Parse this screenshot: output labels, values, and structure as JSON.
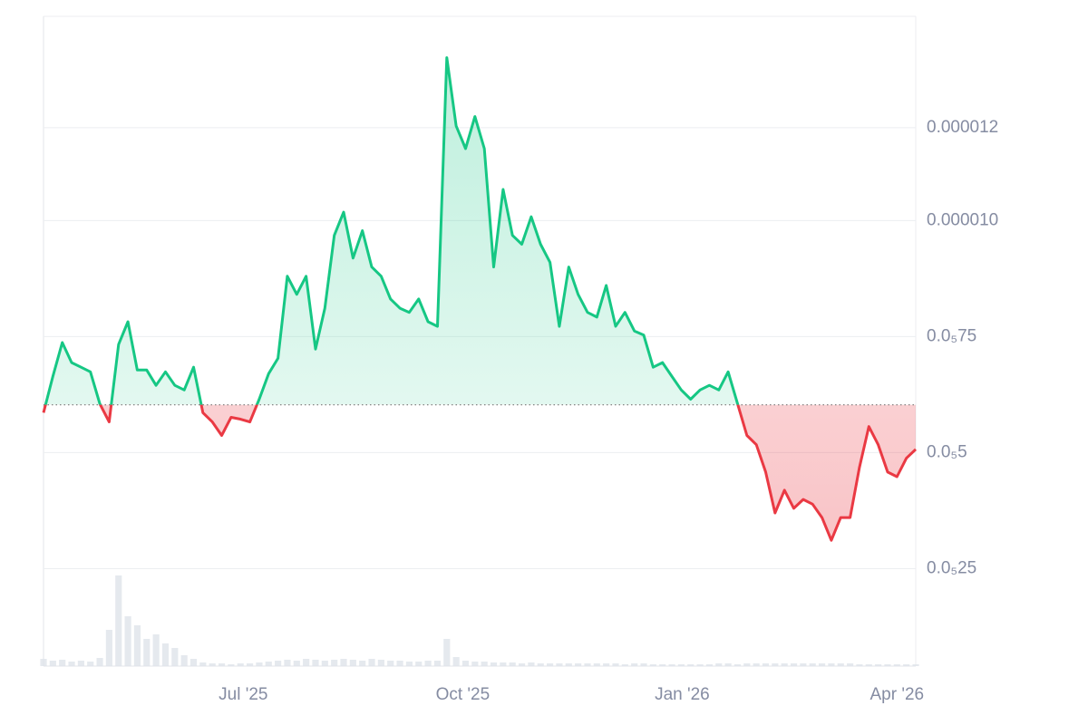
{
  "chart_data": {
    "type": "line",
    "values": [
      5.86e-06,
      6.64e-06,
      7.37e-06,
      6.94e-06,
      6.84e-06,
      6.74e-06,
      6.05e-06,
      5.66e-06,
      7.33e-06,
      7.82e-06,
      6.78e-06,
      6.78e-06,
      6.45e-06,
      6.74e-06,
      6.45e-06,
      6.35e-06,
      6.84e-06,
      5.86e-06,
      5.66e-06,
      5.37e-06,
      5.76e-06,
      5.72e-06,
      5.66e-06,
      6.15e-06,
      6.7e-06,
      7.03e-06,
      8.8e-06,
      8.41e-06,
      8.8e-06,
      7.23e-06,
      8.11e-06,
      9.68e-06,
      1.018e-05,
      9.19e-06,
      9.78e-06,
      9e-06,
      8.8e-06,
      8.31e-06,
      8.11e-06,
      8.02e-06,
      8.31e-06,
      7.82e-06,
      7.72e-06,
      1.351e-05,
      1.204e-05,
      1.155e-05,
      1.224e-05,
      1.155e-05,
      9e-06,
      1.067e-05,
      9.68e-06,
      9.49e-06,
      1.008e-05,
      9.49e-06,
      9.1e-06,
      7.72e-06,
      9e-06,
      8.41e-06,
      8.02e-06,
      7.92e-06,
      8.6e-06,
      7.72e-06,
      8.02e-06,
      7.62e-06,
      7.53e-06,
      6.84e-06,
      6.94e-06,
      6.64e-06,
      6.35e-06,
      6.15e-06,
      6.35e-06,
      6.45e-06,
      6.35e-06,
      6.74e-06,
      6.05e-06,
      5.37e-06,
      5.17e-06,
      4.58e-06,
      3.7e-06,
      4.19e-06,
      3.8e-06,
      3.99e-06,
      3.89e-06,
      3.6e-06,
      3.11e-06,
      3.6e-06,
      3.6e-06,
      4.68e-06,
      5.56e-06,
      5.17e-06,
      4.58e-06,
      4.48e-06,
      4.88e-06,
      5.07e-06
    ],
    "volume": [
      8,
      6,
      7,
      5,
      6,
      5,
      9,
      40,
      100,
      55,
      45,
      30,
      35,
      25,
      20,
      12,
      8,
      4,
      3,
      3,
      2,
      3,
      3,
      4,
      5,
      6,
      7,
      6,
      8,
      7,
      6,
      7,
      8,
      7,
      6,
      8,
      7,
      6,
      6,
      5,
      5,
      6,
      6,
      30,
      10,
      6,
      5,
      5,
      4,
      4,
      4,
      3,
      4,
      3,
      3,
      3,
      3,
      3,
      3,
      3,
      3,
      3,
      2,
      3,
      3,
      2,
      2,
      2,
      2,
      2,
      2,
      2,
      3,
      3,
      2,
      3,
      3,
      3,
      3,
      3,
      3,
      3,
      3,
      3,
      3,
      3,
      3,
      2,
      2,
      2,
      2,
      2,
      2,
      2
    ],
    "volume_lim": [
      0,
      100
    ],
    "baseline": 6.03e-06,
    "up_color": "#16c784",
    "down_color": "#ea3943",
    "xlim": [
      0,
      93
    ],
    "xticks": [
      {
        "value": 21.3,
        "label": "Jul '25"
      },
      {
        "value": 44.7,
        "label": "Oct '25"
      },
      {
        "value": 68.1,
        "label": "Jan '26"
      },
      {
        "value": 91.0,
        "label": "Apr '26"
      }
    ],
    "ylim": [
      4e-07,
      1.44e-05
    ],
    "yticks": [
      {
        "value": 1.2e-05,
        "label": "0.000012"
      },
      {
        "value": 1e-05,
        "label": "0.000010"
      },
      {
        "value": 7.5e-06,
        "label": "0.0₅75"
      },
      {
        "value": 5e-06,
        "label": "0.0₅5"
      },
      {
        "value": 2.5e-06,
        "label": "0.0₅25"
      }
    ],
    "grid": true
  }
}
